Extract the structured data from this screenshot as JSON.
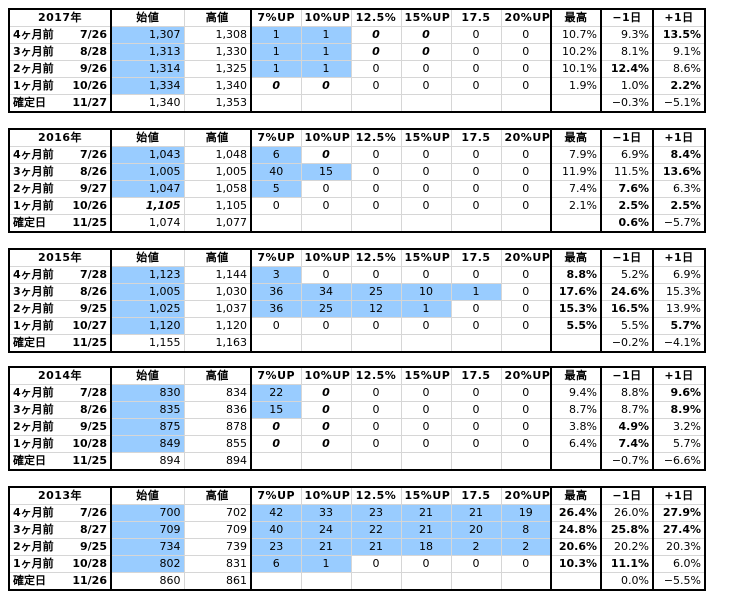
{
  "headers": {
    "open": "始値",
    "high": "高値",
    "thresholds": [
      "7%UP",
      "10%UP",
      "12.5%",
      "15%UP",
      "17.5",
      "20%UP"
    ],
    "max": "最高",
    "minus1": "−1日",
    "plus1": "+1日"
  },
  "colors": {
    "highlight": "#99ccff",
    "grey_text": "#c8c8c8",
    "border": "#000000"
  },
  "blocks": [
    {
      "year": "2017年",
      "rows": [
        {
          "period": "4ヶ月前",
          "date": "7/26",
          "open": "1,307",
          "high": "1,308",
          "counts": [
            "1",
            "1",
            "0",
            "0",
            "0",
            "0"
          ],
          "max": "10.7%",
          "minus1": "9.3%",
          "plus1": "13.5%"
        },
        {
          "period": "3ヶ月前",
          "date": "8/28",
          "open": "1,313",
          "high": "1,330",
          "counts": [
            "1",
            "1",
            "0",
            "0",
            "0",
            "0"
          ],
          "max": "10.2%",
          "minus1": "8.1%",
          "plus1": "9.1%"
        },
        {
          "period": "2ヶ月前",
          "date": "9/26",
          "open": "1,314",
          "high": "1,325",
          "counts": [
            "1",
            "1",
            "0",
            "0",
            "0",
            "0"
          ],
          "max": "10.1%",
          "minus1": "12.4%",
          "plus1": "8.6%"
        },
        {
          "period": "1ヶ月前",
          "date": "10/26",
          "open": "1,334",
          "high": "1,340",
          "counts": [
            "0",
            "0",
            "0",
            "0",
            "0",
            "0"
          ],
          "max": "1.9%",
          "minus1": "1.0%",
          "plus1": "2.2%"
        },
        {
          "period": "確定日",
          "date": "11/27",
          "open": "1,340",
          "high": "1,353",
          "counts": [
            "",
            "",
            "",
            "",
            "",
            ""
          ],
          "max": "",
          "minus1": "−0.3%",
          "plus1": "−5.1%"
        }
      ]
    },
    {
      "year": "2016年",
      "rows": [
        {
          "period": "4ヶ月前",
          "date": "7/26",
          "open": "1,043",
          "high": "1,048",
          "counts": [
            "6",
            "0",
            "0",
            "0",
            "0",
            "0"
          ],
          "max": "7.9%",
          "minus1": "6.9%",
          "plus1": "8.4%"
        },
        {
          "period": "3ヶ月前",
          "date": "8/26",
          "open": "1,005",
          "high": "1,005",
          "counts": [
            "40",
            "15",
            "0",
            "0",
            "0",
            "0"
          ],
          "max": "11.9%",
          "minus1": "11.5%",
          "plus1": "13.6%"
        },
        {
          "period": "2ヶ月前",
          "date": "9/27",
          "open": "1,047",
          "high": "1,058",
          "counts": [
            "5",
            "0",
            "0",
            "0",
            "0",
            "0"
          ],
          "max": "7.4%",
          "minus1": "7.6%",
          "plus1": "6.3%"
        },
        {
          "period": "1ヶ月前",
          "date": "10/26",
          "open": "1,105",
          "high": "1,105",
          "counts": [
            "0",
            "0",
            "0",
            "0",
            "0",
            "0"
          ],
          "max": "2.1%",
          "minus1": "2.5%",
          "plus1": "2.5%"
        },
        {
          "period": "確定日",
          "date": "11/25",
          "open": "1,074",
          "high": "1,077",
          "counts": [
            "",
            "",
            "",
            "",
            "",
            ""
          ],
          "max": "",
          "minus1": "0.6%",
          "plus1": "−5.7%"
        }
      ]
    },
    {
      "year": "2015年",
      "rows": [
        {
          "period": "4ヶ月前",
          "date": "7/28",
          "open": "1,123",
          "high": "1,144",
          "counts": [
            "3",
            "0",
            "0",
            "0",
            "0",
            "0"
          ],
          "max": "8.8%",
          "minus1": "5.2%",
          "plus1": "6.9%"
        },
        {
          "period": "3ヶ月前",
          "date": "8/26",
          "open": "1,005",
          "high": "1,030",
          "counts": [
            "36",
            "34",
            "25",
            "10",
            "1",
            "0"
          ],
          "max": "17.6%",
          "minus1": "24.6%",
          "plus1": "15.3%"
        },
        {
          "period": "2ヶ月前",
          "date": "9/25",
          "open": "1,025",
          "high": "1,037",
          "counts": [
            "36",
            "25",
            "12",
            "1",
            "0",
            "0"
          ],
          "max": "15.3%",
          "minus1": "16.5%",
          "plus1": "13.9%"
        },
        {
          "period": "1ヶ月前",
          "date": "10/27",
          "open": "1,120",
          "high": "1,120",
          "counts": [
            "0",
            "0",
            "0",
            "0",
            "0",
            "0"
          ],
          "max": "5.5%",
          "minus1": "5.5%",
          "plus1": "5.7%"
        },
        {
          "period": "確定日",
          "date": "11/25",
          "open": "1,155",
          "high": "1,163",
          "counts": [
            "",
            "",
            "",
            "",
            "",
            ""
          ],
          "max": "",
          "minus1": "−0.2%",
          "plus1": "−4.1%"
        }
      ]
    },
    {
      "year": "2014年",
      "rows": [
        {
          "period": "4ヶ月前",
          "date": "7/28",
          "open": "830",
          "high": "834",
          "counts": [
            "22",
            "0",
            "0",
            "0",
            "0",
            "0"
          ],
          "max": "9.4%",
          "minus1": "8.8%",
          "plus1": "9.6%"
        },
        {
          "period": "3ヶ月前",
          "date": "8/26",
          "open": "835",
          "high": "836",
          "counts": [
            "15",
            "0",
            "0",
            "0",
            "0",
            "0"
          ],
          "max": "8.7%",
          "minus1": "8.7%",
          "plus1": "8.9%"
        },
        {
          "period": "2ヶ月前",
          "date": "9/25",
          "open": "875",
          "high": "878",
          "counts": [
            "0",
            "0",
            "0",
            "0",
            "0",
            "0"
          ],
          "max": "3.8%",
          "minus1": "4.9%",
          "plus1": "3.2%"
        },
        {
          "period": "1ヶ月前",
          "date": "10/28",
          "open": "849",
          "high": "855",
          "counts": [
            "0",
            "0",
            "0",
            "0",
            "0",
            "0"
          ],
          "max": "6.4%",
          "minus1": "7.4%",
          "plus1": "5.7%"
        },
        {
          "period": "確定日",
          "date": "11/25",
          "open": "894",
          "high": "894",
          "counts": [
            "",
            "",
            "",
            "",
            "",
            ""
          ],
          "max": "",
          "minus1": "−0.7%",
          "plus1": "−6.6%"
        }
      ]
    },
    {
      "year": "2013年",
      "rows": [
        {
          "period": "4ヶ月前",
          "date": "7/26",
          "open": "700",
          "high": "702",
          "counts": [
            "42",
            "33",
            "23",
            "21",
            "21",
            "19"
          ],
          "max": "26.4%",
          "minus1": "26.0%",
          "plus1": "27.9%"
        },
        {
          "period": "3ヶ月前",
          "date": "8/27",
          "open": "709",
          "high": "709",
          "counts": [
            "40",
            "24",
            "22",
            "21",
            "20",
            "8"
          ],
          "max": "24.8%",
          "minus1": "25.8%",
          "plus1": "27.4%"
        },
        {
          "period": "2ヶ月前",
          "date": "9/25",
          "open": "734",
          "high": "739",
          "counts": [
            "23",
            "21",
            "21",
            "18",
            "2",
            "2"
          ],
          "max": "20.6%",
          "minus1": "20.2%",
          "plus1": "20.3%"
        },
        {
          "period": "1ヶ月前",
          "date": "10/28",
          "open": "802",
          "high": "831",
          "counts": [
            "6",
            "1",
            "0",
            "0",
            "0",
            "0"
          ],
          "max": "10.3%",
          "minus1": "11.1%",
          "plus1": "6.0%"
        },
        {
          "period": "確定日",
          "date": "11/26",
          "open": "860",
          "high": "861",
          "counts": [
            "",
            "",
            "",
            "",
            "",
            ""
          ],
          "max": "",
          "minus1": "0.0%",
          "plus1": "−5.5%"
        }
      ]
    }
  ]
}
